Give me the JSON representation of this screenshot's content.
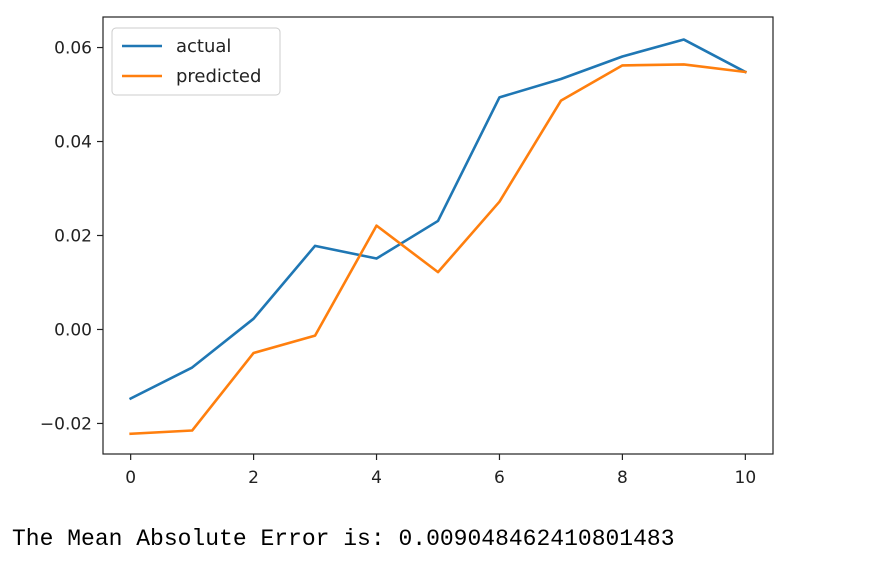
{
  "chart_data": {
    "type": "line",
    "x": [
      0,
      1,
      2,
      3,
      4,
      5,
      6,
      7,
      8,
      9,
      10
    ],
    "series": [
      {
        "name": "actual",
        "color": "#1f77b4",
        "values": [
          -0.0147,
          -0.0081,
          0.0023,
          0.0178,
          0.0151,
          0.0231,
          0.0494,
          0.0533,
          0.0581,
          0.0617,
          0.0548
        ]
      },
      {
        "name": "predicted",
        "color": "#ff7f0e",
        "values": [
          -0.0222,
          -0.0215,
          -0.005,
          -0.0013,
          0.0221,
          0.0122,
          0.0272,
          0.0487,
          0.0562,
          0.0564,
          0.0548
        ]
      }
    ],
    "xlim": [
      -0.45,
      10.45
    ],
    "ylim": [
      -0.0265,
      0.0665
    ],
    "xticks": [
      0,
      2,
      4,
      6,
      8,
      10
    ],
    "xtick_labels": [
      "0",
      "2",
      "4",
      "6",
      "8",
      "10"
    ],
    "yticks": [
      -0.02,
      0.0,
      0.02,
      0.04,
      0.06
    ],
    "ytick_labels": [
      "−0.02",
      "0.00",
      "0.02",
      "0.04",
      "0.06"
    ],
    "legend_position": "top-left",
    "grid": false
  },
  "output": {
    "text": "The Mean Absolute Error is: 0.009048462410801483"
  }
}
